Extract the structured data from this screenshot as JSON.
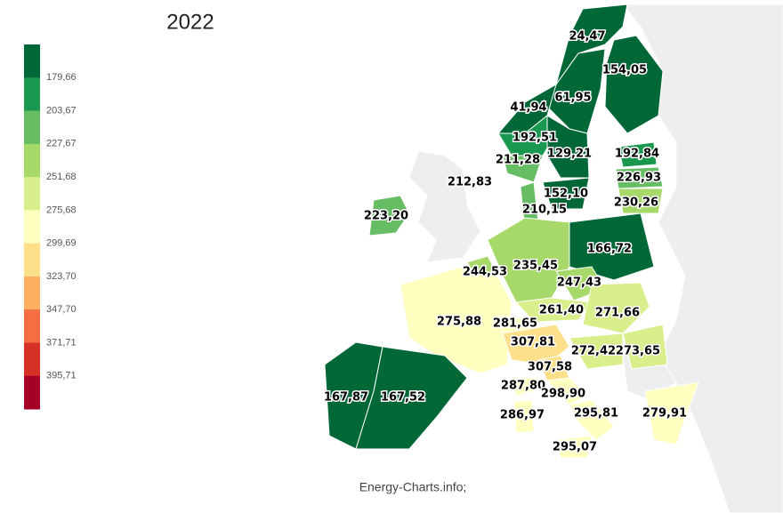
{
  "title": "2022",
  "legend": {
    "ticks": [
      "179,66",
      "203,67",
      "227,67",
      "251,68",
      "275,68",
      "299,69",
      "323,70",
      "347,70",
      "371,71",
      "395,71"
    ],
    "colors": [
      "#006837",
      "#1a9850",
      "#66bd63",
      "#a6d96a",
      "#d9ef8b",
      "#ffffbf",
      "#fee08b",
      "#fdae61",
      "#f46d43",
      "#d73027",
      "#a50026"
    ]
  },
  "regions": [
    {
      "label": "24,47",
      "color": "#006837"
    },
    {
      "label": "154,05",
      "color": "#006837"
    },
    {
      "label": "61,95",
      "color": "#006837"
    },
    {
      "label": "41,94",
      "color": "#006837"
    },
    {
      "label": "192,51",
      "color": "#1a9850"
    },
    {
      "label": "129,21",
      "color": "#006837"
    },
    {
      "label": "211,28",
      "color": "#66bd63"
    },
    {
      "label": "192,84",
      "color": "#1a9850"
    },
    {
      "label": "226,93",
      "color": "#66bd63"
    },
    {
      "label": "230,26",
      "color": "#a6d96a"
    },
    {
      "label": "212,83",
      "color": "#eeeeee"
    },
    {
      "label": "152,10",
      "color": "#006837"
    },
    {
      "label": "210,15",
      "color": "#66bd63"
    },
    {
      "label": "223,20",
      "color": "#66bd63"
    },
    {
      "label": "166,72",
      "color": "#006837"
    },
    {
      "label": "244,53",
      "color": "#a6d96a"
    },
    {
      "label": "235,45",
      "color": "#a6d96a"
    },
    {
      "label": "247,43",
      "color": "#a6d96a"
    },
    {
      "label": "261,40",
      "color": "#d9ef8b"
    },
    {
      "label": "271,66",
      "color": "#d9ef8b"
    },
    {
      "label": "275,88",
      "color": "#ffffbf"
    },
    {
      "label": "281,65",
      "color": "#ffffbf"
    },
    {
      "label": "307,81",
      "color": "#fee08b"
    },
    {
      "label": "272,42",
      "color": "#d9ef8b"
    },
    {
      "label": "273,65",
      "color": "#d9ef8b"
    },
    {
      "label": "307,58",
      "color": "#fee08b"
    },
    {
      "label": "287,80",
      "color": "#ffffbf"
    },
    {
      "label": "298,90",
      "color": "#ffffbf"
    },
    {
      "label": "167,87",
      "color": "#006837"
    },
    {
      "label": "167,52",
      "color": "#006837"
    },
    {
      "label": "286,97",
      "color": "#ffffbf"
    },
    {
      "label": "295,81",
      "color": "#ffffbf"
    },
    {
      "label": "279,91",
      "color": "#ffffbf"
    },
    {
      "label": "295,07",
      "color": "#ffffbf"
    }
  ],
  "source": "Energy-Charts.info;"
}
